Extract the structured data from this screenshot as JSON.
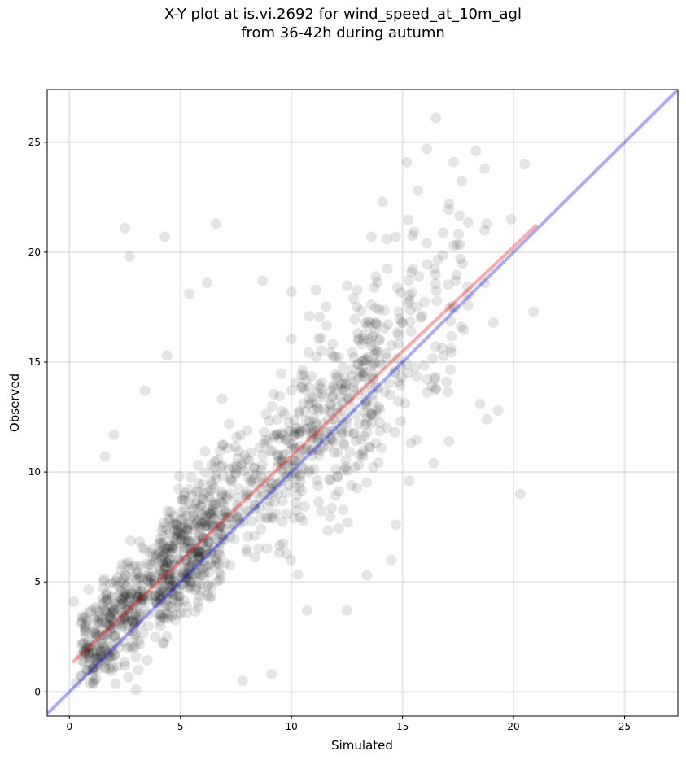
{
  "chart_data": {
    "type": "scatter",
    "title": [
      "X-Y plot at is.vi.2692 for wind_speed_at_10m_agl",
      "from 36-42h during autumn"
    ],
    "xlabel": "Simulated",
    "ylabel": "Observed",
    "xlim": [
      -1,
      27.4
    ],
    "ylim": [
      -1.1,
      27.4
    ],
    "xticks": [
      0,
      5,
      10,
      15,
      20,
      25
    ],
    "yticks": [
      0,
      5,
      10,
      15,
      20,
      25
    ],
    "xtick_labels": [
      "0",
      "5",
      "10",
      "15",
      "20",
      "25"
    ],
    "ytick_labels": [
      "0",
      "5",
      "10",
      "15",
      "20",
      "25"
    ],
    "grid": true,
    "point_color": "#000000",
    "point_alpha": 0.1,
    "outliers": [
      {
        "x": 2.5,
        "y": 21.1
      },
      {
        "x": 2.7,
        "y": 19.8
      },
      {
        "x": 4.3,
        "y": 20.7
      },
      {
        "x": 6.6,
        "y": 21.3
      },
      {
        "x": 16.5,
        "y": 26.1
      },
      {
        "x": 15.2,
        "y": 24.1
      },
      {
        "x": 18.3,
        "y": 24.6
      },
      {
        "x": 16.1,
        "y": 24.7
      },
      {
        "x": 17.3,
        "y": 24.1
      },
      {
        "x": 18.7,
        "y": 23.8
      },
      {
        "x": 20.5,
        "y": 24.0
      },
      {
        "x": 15.7,
        "y": 22.8
      },
      {
        "x": 14.1,
        "y": 22.3
      },
      {
        "x": 17.1,
        "y": 22.2
      },
      {
        "x": 19.9,
        "y": 21.5
      },
      {
        "x": 18.8,
        "y": 21.3
      },
      {
        "x": 20.9,
        "y": 17.3
      },
      {
        "x": 20.3,
        "y": 9.0
      },
      {
        "x": 19.1,
        "y": 16.8
      },
      {
        "x": 19.3,
        "y": 12.8
      },
      {
        "x": 18.5,
        "y": 13.1
      },
      {
        "x": 18.8,
        "y": 12.4
      },
      {
        "x": 17.1,
        "y": 11.4
      },
      {
        "x": 16.4,
        "y": 10.4
      },
      {
        "x": 15.3,
        "y": 9.6
      },
      {
        "x": 14.7,
        "y": 7.6
      },
      {
        "x": 14.5,
        "y": 6.0
      },
      {
        "x": 13.4,
        "y": 5.3
      },
      {
        "x": 12.5,
        "y": 3.7
      },
      {
        "x": 10.7,
        "y": 3.7
      },
      {
        "x": 9.1,
        "y": 0.8
      },
      {
        "x": 7.8,
        "y": 0.5
      },
      {
        "x": 3.0,
        "y": 0.1
      },
      {
        "x": 0.3,
        "y": 0.4
      },
      {
        "x": 0.2,
        "y": 4.1
      },
      {
        "x": 1.6,
        "y": 10.7
      },
      {
        "x": 2.0,
        "y": 11.7
      },
      {
        "x": 3.4,
        "y": 13.7
      },
      {
        "x": 4.4,
        "y": 15.3
      },
      {
        "x": 5.4,
        "y": 18.1
      },
      {
        "x": 6.2,
        "y": 18.6
      },
      {
        "x": 8.7,
        "y": 18.7
      },
      {
        "x": 10.0,
        "y": 18.2
      },
      {
        "x": 11.1,
        "y": 18.3
      },
      {
        "x": 13.6,
        "y": 20.7
      },
      {
        "x": 14.3,
        "y": 20.6
      },
      {
        "x": 16.1,
        "y": 20.4
      },
      {
        "x": 17.6,
        "y": 19.7
      },
      {
        "x": 15.4,
        "y": 19.1
      },
      {
        "x": 18.7,
        "y": 18.6
      },
      {
        "x": 17.3,
        "y": 20.3
      },
      {
        "x": 18.7,
        "y": 21.0
      }
    ],
    "trend_line": {
      "color": "#ff0000",
      "x1": 0.2,
      "y1": 1.4,
      "x2": 21.0,
      "y2": 21.2
    },
    "identity_line": {
      "color": "#0000ff",
      "x1": -1,
      "y1": -1,
      "x2": 27.4,
      "y2": 27.4
    }
  }
}
